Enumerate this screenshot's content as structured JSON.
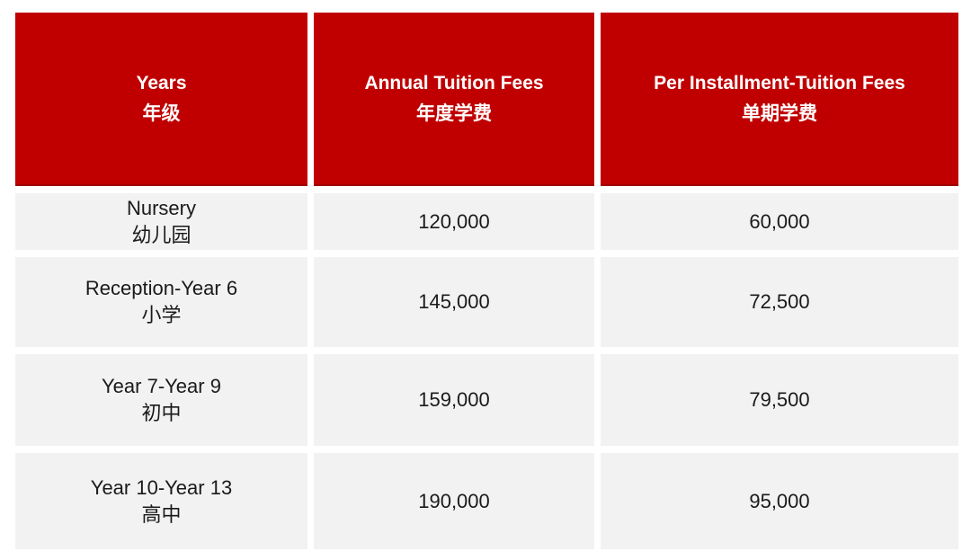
{
  "chart_data": {
    "type": "table",
    "columns": [
      {
        "label_en": "Years",
        "label_zh": "年级"
      },
      {
        "label_en": "Annual Tuition Fees",
        "label_zh": "年度学费"
      },
      {
        "label_en": "Per Installment-Tuition Fees",
        "label_zh": "单期学费"
      }
    ],
    "rows": [
      {
        "year_en": "Nursery",
        "year_zh": "幼儿园",
        "annual_fee": "120,000",
        "installment_fee": "60,000"
      },
      {
        "year_en": "Reception-Year 6",
        "year_zh": "小学",
        "annual_fee": "145,000",
        "installment_fee": "72,500"
      },
      {
        "year_en": "Year 7-Year 9",
        "year_zh": "初中",
        "annual_fee": "159,000",
        "installment_fee": "79,500"
      },
      {
        "year_en": "Year 10-Year 13",
        "year_zh": "高中",
        "annual_fee": "190,000",
        "installment_fee": "95,000"
      }
    ]
  },
  "colors": {
    "page_bg": "#FFFFFF",
    "header_bg": "#C00000",
    "header_border": "#A00000",
    "header_text": "#FFFFFF",
    "row_bg": "#F2F2F2",
    "body_text": "#1A1A1A"
  }
}
